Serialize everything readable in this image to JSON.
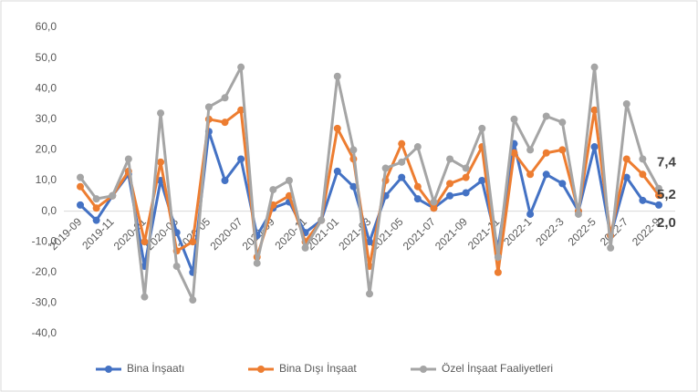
{
  "chart_data": {
    "type": "line",
    "categories": [
      "2019-09",
      null,
      "2019-11",
      null,
      "2020-01",
      null,
      "2020-03",
      null,
      "2020-05",
      null,
      "2020-07",
      null,
      "2020-09",
      null,
      "2020-11",
      null,
      "2021-01",
      null,
      "2021-03",
      null,
      "2021-05",
      null,
      "2021-07",
      null,
      "2021-09",
      null,
      "2021-11",
      null,
      "2022-1",
      null,
      "2022-3",
      null,
      "2022-5",
      null,
      "2022-7",
      null,
      "2022-9"
    ],
    "series": [
      {
        "name": "Bina İnşaatı",
        "color": "#4472c4",
        "values": [
          2,
          -3,
          5,
          12,
          -18,
          10,
          -7,
          -20,
          26,
          10,
          17,
          -8,
          1,
          3,
          -7,
          -3,
          13,
          8,
          -10,
          5,
          11,
          4,
          1,
          5,
          6,
          10,
          -12,
          22,
          -1,
          12,
          9,
          0,
          21,
          -8,
          11,
          3.5,
          2.0
        ],
        "value_labels": [
          null,
          null,
          null,
          null,
          null,
          null,
          null,
          null,
          null,
          null,
          null,
          null,
          null,
          null,
          null,
          null,
          null,
          null,
          null,
          null,
          null,
          null,
          null,
          null,
          null,
          null,
          null,
          null,
          null,
          null,
          null,
          null,
          null,
          null,
          null,
          null,
          "2,0"
        ]
      },
      {
        "name": "Bina Dışı İnşaat",
        "color": "#ed7d31",
        "values": [
          8,
          1,
          5,
          13,
          -10,
          16,
          -13,
          -10,
          30,
          29,
          33,
          -15,
          2,
          5,
          -10,
          -3,
          27,
          17,
          -18,
          10,
          22,
          8,
          1,
          9,
          11,
          21,
          -20,
          19,
          12,
          19,
          20,
          0,
          33,
          -8,
          17,
          12,
          5.2
        ],
        "value_labels": [
          null,
          null,
          null,
          null,
          null,
          null,
          null,
          null,
          null,
          null,
          null,
          null,
          null,
          null,
          null,
          null,
          null,
          null,
          null,
          null,
          null,
          null,
          null,
          null,
          null,
          null,
          null,
          null,
          null,
          null,
          null,
          null,
          null,
          null,
          null,
          null,
          "5,2"
        ]
      },
      {
        "name": "Özel İnşaat Faaliyetleri",
        "color": "#a5a5a5",
        "values": [
          11,
          4,
          5,
          17,
          -28,
          32,
          -18,
          -29,
          34,
          37,
          47,
          -17,
          7,
          10,
          -12,
          -3,
          44,
          20,
          -27,
          14,
          16,
          21,
          3,
          17,
          14,
          27,
          -15,
          30,
          20,
          31,
          29,
          -1,
          47,
          -12,
          35,
          17,
          7.4
        ],
        "value_labels": [
          null,
          null,
          null,
          null,
          null,
          null,
          null,
          null,
          null,
          null,
          null,
          null,
          null,
          null,
          null,
          null,
          null,
          null,
          null,
          null,
          null,
          null,
          null,
          null,
          null,
          null,
          null,
          null,
          null,
          null,
          null,
          null,
          null,
          null,
          null,
          null,
          "7,4"
        ]
      }
    ],
    "ylim": [
      -40,
      60
    ],
    "yticks": [
      {
        "value": -40,
        "label": "-40,0"
      },
      {
        "value": -30,
        "label": "-30,0"
      },
      {
        "value": -20,
        "label": "-20,0"
      },
      {
        "value": -10,
        "label": "-10,0"
      },
      {
        "value": 0,
        "label": "0,0"
      },
      {
        "value": 10,
        "label": "10,0"
      },
      {
        "value": 20,
        "label": "20,0"
      },
      {
        "value": 30,
        "label": "30,0"
      },
      {
        "value": 40,
        "label": "40,0"
      },
      {
        "value": 50,
        "label": "50,0"
      },
      {
        "value": 60,
        "label": "60,0"
      }
    ],
    "grid": false,
    "legend": "bottom"
  }
}
